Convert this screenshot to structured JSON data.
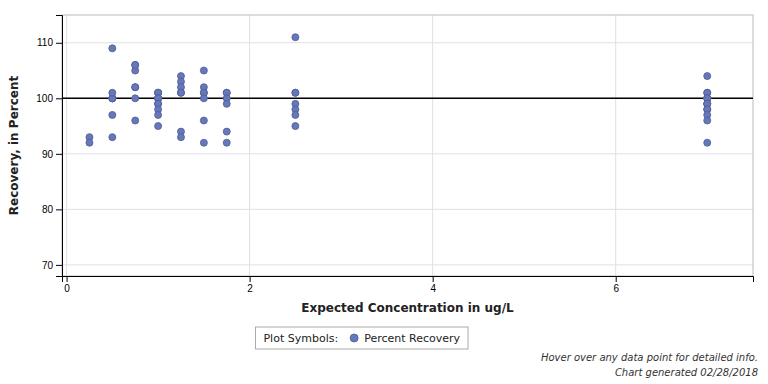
{
  "chart_data": {
    "type": "scatter",
    "x_label": "Expected Concentration in ug/L",
    "y_label": "Recovery, in Percent",
    "x": [
      0.25,
      0.25,
      0.5,
      0.5,
      0.5,
      0.5,
      0.5,
      0.5,
      0.5,
      0.5,
      0.75,
      0.75,
      0.75,
      0.75,
      0.75,
      0.75,
      0.75,
      1.0,
      1.0,
      1.0,
      1.0,
      1.0,
      1.0,
      1.0,
      1.0,
      1.0,
      1.0,
      1.0,
      1.25,
      1.25,
      1.25,
      1.25,
      1.25,
      1.25,
      1.25,
      1.5,
      1.5,
      1.5,
      1.5,
      1.5,
      1.5,
      1.5,
      1.75,
      1.75,
      1.75,
      1.75,
      1.75,
      1.75,
      2.5,
      2.5,
      2.5,
      2.5,
      2.5,
      2.5,
      2.5,
      7.0,
      7.0,
      7.0,
      7.0,
      7.0,
      7.0,
      7.0,
      7.0,
      7.0,
      7.0,
      7.0,
      7.0,
      7.0,
      7.0
    ],
    "series": [
      {
        "name": "Percent Recovery",
        "color": "#6677bb",
        "values": [
          93,
          92,
          109,
          97,
          93,
          100,
          100,
          100,
          100,
          101,
          102,
          102,
          106,
          105,
          106,
          96,
          100,
          101,
          101,
          101,
          100,
          100,
          100,
          99,
          99,
          98,
          97,
          95,
          104,
          103,
          102,
          101,
          101,
          94,
          93,
          101,
          102,
          105,
          101,
          100,
          96,
          92,
          101,
          101,
          100,
          99,
          94,
          92,
          111,
          101,
          101,
          99,
          98,
          97,
          95,
          104,
          101,
          101,
          100,
          100,
          100,
          99,
          99,
          99,
          98,
          98,
          97,
          96,
          92
        ]
      }
    ],
    "xlim": [
      -0.05,
      7.5
    ],
    "xticks": [
      0,
      2,
      4,
      6
    ],
    "ylim": [
      68,
      115
    ],
    "yticks": [
      70,
      80,
      90,
      100,
      110
    ],
    "grid": true,
    "legend": "bottom",
    "legend_title": "Plot Symbols:",
    "reference_line": 100,
    "annotations": [
      "Hover over any data point for detailed info.",
      "Chart generated 02/28/2018"
    ]
  }
}
